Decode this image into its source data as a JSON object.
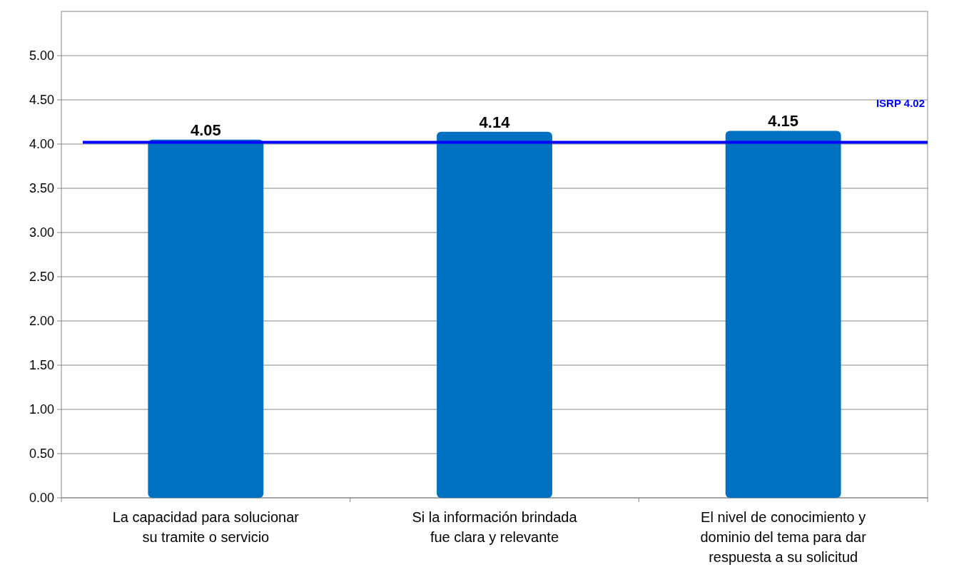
{
  "chart_data": {
    "type": "bar",
    "categories": [
      "La capacidad para solucionar su tramite o servicio",
      "Si la información brindada fue clara y relevante",
      "El nivel de conocimiento y dominio del tema para dar respuesta a su solicitud"
    ],
    "values": [
      4.05,
      4.14,
      4.15
    ],
    "color": "#0070c0",
    "ylim": [
      0,
      5.5
    ],
    "yticks": [
      {
        "value": 0,
        "label": "0.00"
      },
      {
        "value": 0.5,
        "label": "0.50"
      },
      {
        "value": 1,
        "label": "1.00"
      },
      {
        "value": 1.5,
        "label": "1.50"
      },
      {
        "value": 2,
        "label": "2.00"
      },
      {
        "value": 2.5,
        "label": "2.50"
      },
      {
        "value": 3,
        "label": "3.00"
      },
      {
        "value": 3.5,
        "label": "3.50"
      },
      {
        "value": 4,
        "label": "4.00"
      },
      {
        "value": 4.5,
        "label": "4.50"
      },
      {
        "value": 5,
        "label": "5.00"
      }
    ],
    "grid": "y",
    "data_labels": true,
    "ref_lines": [
      {
        "axis": "y",
        "value": 4.02,
        "label": "ISRP 4.02",
        "color": "#0000ff"
      }
    ]
  }
}
